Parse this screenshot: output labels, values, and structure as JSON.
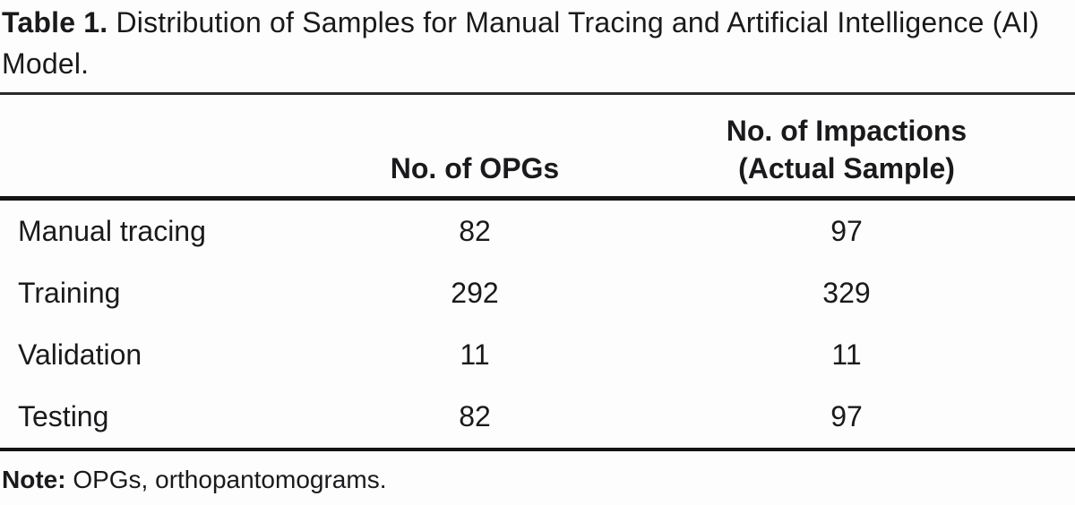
{
  "caption": {
    "bold": "Table 1.",
    "rest": " Distribution of Samples for Manual Tracing and Artificial Intelligence (AI) Model."
  },
  "table": {
    "header": {
      "label_col": "",
      "opgs": "No. of OPGs",
      "impactions_line1": "No. of Impactions",
      "impactions_line2": "(Actual Sample)"
    },
    "rows": [
      {
        "label": "Manual tracing",
        "opgs": "82",
        "impactions": "97"
      },
      {
        "label": "Training",
        "opgs": "292",
        "impactions": "329"
      },
      {
        "label": "Validation",
        "opgs": "11",
        "impactions": "11"
      },
      {
        "label": "Testing",
        "opgs": "82",
        "impactions": "97"
      }
    ]
  },
  "note": {
    "bold": "Note:",
    "rest": " OPGs, orthopantomograms."
  },
  "chart_data": {
    "type": "table",
    "title": "Table 1. Distribution of Samples for Manual Tracing and Artificial Intelligence (AI) Model.",
    "columns": [
      "",
      "No. of OPGs",
      "No. of Impactions (Actual Sample)"
    ],
    "categories": [
      "Manual tracing",
      "Training",
      "Validation",
      "Testing"
    ],
    "series": [
      {
        "name": "No. of OPGs",
        "values": [
          82,
          292,
          11,
          82
        ]
      },
      {
        "name": "No. of Impactions (Actual Sample)",
        "values": [
          97,
          329,
          11,
          97
        ]
      }
    ],
    "note": "Note: OPGs, orthopantomograms."
  },
  "colors": {
    "text": "#1a1a1c",
    "rule": "#141414",
    "background": "#fdfdfd"
  }
}
